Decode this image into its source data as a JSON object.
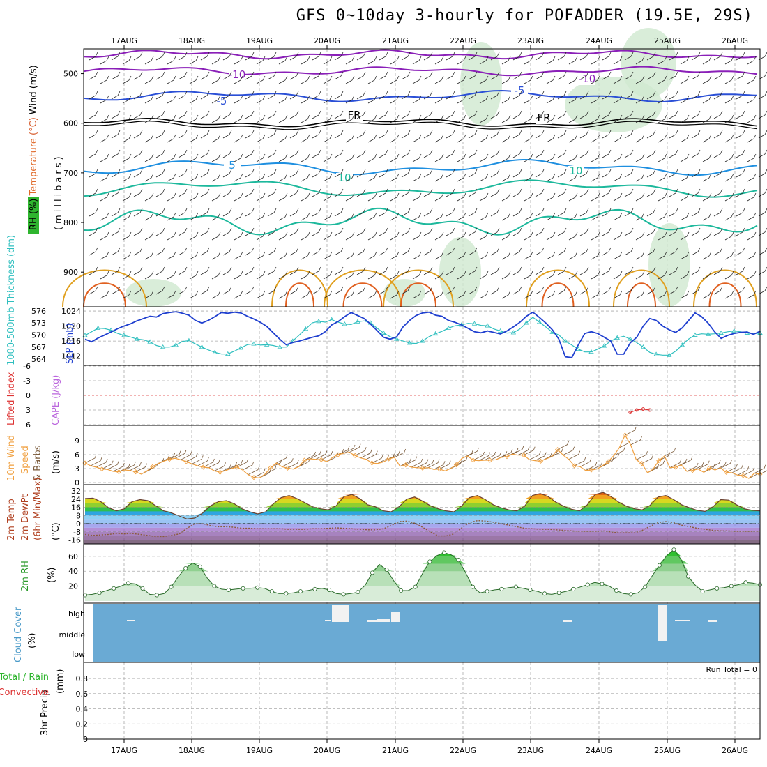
{
  "title": "GFS 0~10day 3-hourly for POFADDER (19.5E, 29S)",
  "date_labels": [
    "17AUG",
    "18AUG",
    "19AUG",
    "20AUG",
    "21AUG",
    "22AUG",
    "23AUG",
    "24AUG",
    "25AUG",
    "26AUG"
  ],
  "colors": {
    "temp_neg": "#8a1fb8",
    "temp_m5": "#2a4fd6",
    "freeze": "#000000",
    "temp_p5": "#1e8fe0",
    "temp_p10": "#1cb89c",
    "temp_warm": "#e0a020",
    "temp_hot": "#e06020",
    "rh_fill": "#cfe8cf",
    "slp": "#1f3fcf",
    "thickness": "#2fbfbf",
    "wind10": "#f0a040",
    "cloud": "#6aaad4",
    "rh2m": "#39c739",
    "lifted": "#dd3333",
    "cape": "#bb66dd"
  },
  "chart_data": [
    {
      "panel": "upper-air",
      "type": "contour",
      "ylabel_parts": [
        "RH (%)",
        "Temperature",
        "(°C)",
        "Wind",
        "(m/s)"
      ],
      "yunit": "(millibars)",
      "yticks": [
        500,
        600,
        700,
        800,
        900
      ],
      "contour_labels": [
        "-10",
        "-10",
        "-5",
        "-5",
        "FR",
        "FR",
        "5",
        "10",
        "10"
      ]
    },
    {
      "panel": "slp-thickness",
      "type": "line",
      "ylabel_left": "1000-500mb Thickness (dm)",
      "ylabel_right": "SLP (mb)",
      "yticks_left": [
        564,
        567,
        570,
        573,
        576
      ],
      "yticks_right": [
        1012,
        1016,
        1020,
        1024
      ],
      "series": [
        {
          "name": "SLP (mb)",
          "values": [
            1016.5,
            1015.8,
            1016.8,
            1017.6,
            1018.4,
            1019.3,
            1020.0,
            1020.6,
            1021.4,
            1022.0,
            1022.6,
            1022.4,
            1023.3,
            1023.6,
            1023.8,
            1023.4,
            1022.9,
            1021.5,
            1020.8,
            1021.5,
            1022.5,
            1023.6,
            1023.4,
            1023.7,
            1023.5,
            1022.6,
            1021.9,
            1021.0,
            1019.9,
            1018.2,
            1016.5,
            1015.0,
            1015.6,
            1016.0,
            1016.5,
            1017.0,
            1017.4,
            1018.5,
            1020.3,
            1021.2,
            1022.5,
            1023.6,
            1022.8,
            1022.0,
            1020.5,
            1018.8,
            1017.0,
            1016.5,
            1017.1,
            1019.8,
            1021.5,
            1022.8,
            1023.5,
            1023.7,
            1022.9,
            1022.6,
            1021.5,
            1021.0,
            1020.3,
            1019.4,
            1018.5,
            1018.2,
            1018.7,
            1018.3,
            1017.9,
            1018.7,
            1019.8,
            1021.0,
            1022.6,
            1023.7,
            1022.3,
            1020.8,
            1019.0,
            1016.5,
            1011.8,
            1011.6,
            1015.0,
            1018.0,
            1018.5,
            1018.0,
            1017.0,
            1016.0,
            1012.5,
            1012.5,
            1015.5,
            1017.0,
            1020.0,
            1022.0,
            1021.5,
            1020.0,
            1019.0,
            1018.3,
            1019.5,
            1021.5,
            1023.5,
            1022.5,
            1020.8,
            1018.5,
            1016.7,
            1017.5,
            1018.0,
            1018.3,
            1018.4,
            1017.8,
            1018.6
          ]
        },
        {
          "name": "1000-500mb Thickness (dm)",
          "values": [
            569.9,
            570.8,
            571.7,
            571.6,
            571.2,
            570.4,
            569.9,
            569.5,
            569.0,
            568.8,
            568.3,
            567.4,
            567.0,
            567.0,
            567.5,
            568.4,
            568.6,
            567.8,
            567.0,
            566.3,
            565.7,
            565.3,
            565.3,
            566.0,
            566.8,
            567.6,
            567.8,
            567.5,
            567.6,
            567.4,
            567.0,
            567.0,
            568.5,
            570.0,
            571.5,
            573.0,
            573.4,
            573.2,
            573.8,
            573.2,
            572.7,
            572.6,
            573.3,
            573.5,
            573.0,
            571.7,
            570.5,
            569.6,
            569.0,
            568.5,
            568.0,
            567.9,
            568.5,
            569.6,
            570.3,
            570.9,
            571.7,
            572.3,
            572.5,
            572.9,
            572.8,
            572.4,
            572.3,
            571.5,
            571.0,
            570.5,
            570.6,
            571.5,
            573.0,
            574.4,
            573.2,
            572.0,
            570.7,
            570.0,
            568.5,
            567.5,
            566.5,
            565.8,
            565.8,
            566.5,
            567.3,
            568.5,
            569.3,
            569.7,
            569.0,
            568.1,
            567.0,
            565.7,
            565.2,
            565.0,
            565.0,
            566.0,
            567.5,
            569.0,
            570.0,
            570.3,
            570.2,
            570.3,
            570.5,
            570.8,
            571.0,
            570.8,
            570.5,
            570.3,
            570.5
          ]
        }
      ]
    },
    {
      "panel": "stability",
      "type": "line",
      "ylabel_parts": [
        "Lifted Index",
        "CAPE (J/kg)"
      ],
      "yticks": [
        "-6",
        "-3",
        "0",
        "3",
        "6"
      ],
      "series": [
        {
          "name": "Lifted Index",
          "points": [
            [
              84,
              3.5
            ],
            [
              85,
              3.0
            ],
            [
              86,
              2.8
            ],
            [
              87,
              3.0
            ]
          ]
        }
      ]
    },
    {
      "panel": "10m-wind",
      "type": "line",
      "ylabel_parts": [
        "10m Wind",
        "Speed",
        "& Barbs",
        "(m/s)"
      ],
      "yticks": [
        0,
        3,
        6,
        9
      ],
      "series": [
        {
          "name": "Speed",
          "values": [
            4.2,
            3.6,
            3.3,
            2.9,
            2.8,
            2.4,
            2.3,
            2.7,
            2.6,
            2.3,
            1.8,
            2.5,
            3.4,
            4.1,
            4.6,
            5.0,
            5.2,
            4.9,
            4.5,
            4.0,
            3.6,
            3.3,
            3.2,
            2.5,
            2.2,
            2.6,
            3.0,
            3.3,
            2.7,
            1.7,
            1.1,
            1.0,
            1.8,
            3.2,
            4.2,
            3.4,
            3.1,
            2.9,
            3.4,
            4.8,
            5.1,
            5.0,
            4.9,
            4.5,
            5.4,
            6.0,
            6.3,
            6.5,
            5.8,
            5.3,
            5.0,
            4.2,
            4.1,
            4.4,
            5.1,
            5.4,
            3.5,
            3.8,
            3.3,
            3.2,
            3.1,
            3.2,
            2.8,
            2.9,
            2.5,
            3.0,
            3.8,
            5.2,
            5.7,
            4.8,
            4.7,
            4.8,
            4.8,
            4.9,
            5.4,
            5.6,
            6.1,
            5.9,
            5.9,
            4.9,
            4.7,
            4.6,
            5.1,
            5.6,
            7.1,
            5.9,
            5.0,
            3.6,
            3.4,
            2.6,
            2.7,
            2.9,
            3.6,
            4.5,
            5.8,
            7.5,
            10.2,
            8.1,
            4.9,
            4.1,
            2.1,
            2.9,
            4.7,
            5.7,
            3.2,
            3.3,
            3.8,
            2.4,
            2.6,
            2.9,
            2.2,
            3.1,
            2.7,
            3.1,
            2.2,
            2.1,
            1.6,
            1.5,
            0.9,
            2.0,
            1.8
          ]
        }
      ]
    },
    {
      "panel": "2m-temp",
      "type": "area",
      "ylabel_parts": [
        "2m Temp",
        "2m DewPt",
        "(6hr Min/Max)",
        "(°C)"
      ],
      "yticks": [
        -16,
        -8,
        0,
        8,
        16,
        24,
        32
      ],
      "series": [
        {
          "name": "2m Temp",
          "values": [
            24.5,
            25.0,
            21.5,
            15.5,
            12.5,
            14.5,
            21.5,
            23.5,
            22.5,
            17.5,
            12.5,
            10.5,
            7.5,
            4.5,
            5.5,
            10.5,
            17.5,
            21.5,
            22.5,
            19.5,
            14.5,
            11.5,
            9.5,
            11.5,
            19.5,
            25.5,
            27.5,
            24.5,
            20.5,
            16.5,
            14.5,
            13.5,
            17.5,
            26.5,
            28.5,
            24.5,
            18.5,
            16.5,
            12.5,
            11.5,
            16.5,
            24.0,
            26.0,
            22.0,
            17.5,
            14.5,
            12.5,
            11.5,
            17.5,
            25.5,
            27.5,
            23.5,
            18.5,
            15.5,
            13.5,
            12.5,
            17.0,
            27.5,
            29.5,
            26.5,
            21.0,
            17.0,
            14.0,
            12.5,
            18.5,
            28.5,
            30.5,
            26.5,
            21.0,
            17.0,
            14.5,
            13.5,
            18.0,
            26.0,
            27.5,
            23.5,
            18.5,
            15.5,
            13.0,
            12.0,
            16.5,
            23.5,
            23.0,
            18.5,
            14.5,
            13.0,
            12.5
          ]
        },
        {
          "name": "2m DewPt",
          "values": [
            -10.5,
            -11.5,
            -11.0,
            -10.5,
            -9.5,
            -10.0,
            -9.5,
            -10.5,
            -11.5,
            -12.5,
            -12.5,
            -11.5,
            -10.0,
            -4.5,
            0.0,
            0.0,
            -2.0,
            -3.0,
            -3.0,
            -3.5,
            -4.5,
            -4.5,
            -5.0,
            -5.0,
            -5.0,
            -5.0,
            -5.5,
            -5.5,
            -5.5,
            -5.0,
            -5.0,
            -4.5,
            -4.0,
            -4.5,
            -5.0,
            -5.5,
            -6.0,
            -6.0,
            -5.0,
            -2.0,
            2.0,
            2.5,
            0.5,
            -3.5,
            -8.0,
            -12.0,
            -12.0,
            -10.0,
            -4.0,
            1.0,
            3.0,
            2.5,
            1.5,
            0.0,
            -1.5,
            -3.0,
            -4.5,
            -5.0,
            -5.5,
            -5.5,
            -6.0,
            -6.5,
            -7.0,
            -7.5,
            -7.5,
            -7.5,
            -7.0,
            -8.0,
            -9.0,
            -9.0,
            -9.0,
            -6.5,
            -2.5,
            1.0,
            2.0,
            1.0,
            -1.5,
            -3.0,
            -4.5,
            -5.5,
            -6.5,
            -7.0,
            -7.0,
            -7.5,
            -7.5,
            -7.5,
            -7.5
          ]
        }
      ]
    },
    {
      "panel": "2m-rh",
      "type": "area",
      "ylabel_parts": [
        "2m RH",
        "(%)"
      ],
      "yticks": [
        20,
        40,
        60
      ],
      "series": [
        {
          "name": "2m RH",
          "values": [
            8,
            9,
            11,
            14,
            17,
            20,
            24,
            23,
            17,
            9,
            8,
            10,
            19,
            33,
            44,
            51,
            46,
            31,
            20,
            16,
            15,
            16,
            17,
            17,
            18,
            17,
            13,
            10,
            10,
            11,
            13,
            14,
            16,
            17,
            15,
            10,
            9,
            10,
            12,
            21,
            38,
            49,
            42,
            27,
            14,
            14,
            19,
            37,
            53,
            61,
            65,
            62,
            55,
            38,
            19,
            11,
            13,
            15,
            16,
            18,
            19,
            17,
            15,
            13,
            10,
            9,
            11,
            13,
            16,
            19,
            22,
            25,
            23,
            20,
            14,
            10,
            9,
            11,
            19,
            34,
            48,
            61,
            69,
            56,
            33,
            21,
            13,
            15,
            17,
            18,
            20,
            22,
            25,
            24,
            22
          ]
        }
      ]
    },
    {
      "panel": "cloud-cover",
      "type": "bar",
      "ylabel_parts": [
        "Cloud Cover",
        "(%)"
      ],
      "yticks": [
        "high",
        "middle",
        "low"
      ],
      "background": "#6aaad4"
    },
    {
      "panel": "precip",
      "type": "bar",
      "ylabel_parts": [
        "Total / Rain",
        "Convective",
        "3hr Precip",
        "(mm)"
      ],
      "yticks": [
        0,
        0.2,
        0.4,
        0.6,
        0.8
      ],
      "annotation": "Run Total = 0",
      "values": []
    }
  ]
}
